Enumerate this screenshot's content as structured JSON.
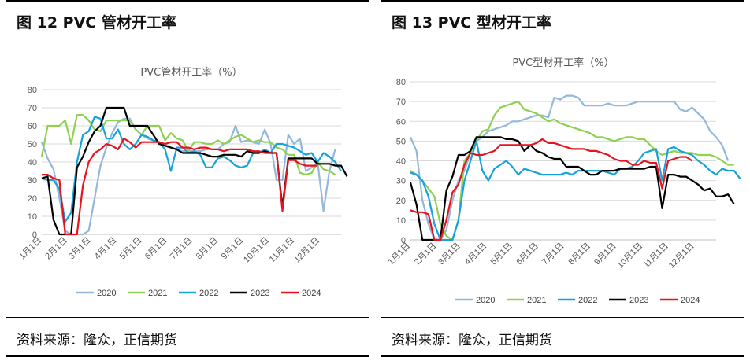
{
  "panels": [
    {
      "header": "图 12 PVC 管材开工率",
      "source": "资料来源：隆众，正信期货",
      "chart_data": {
        "type": "line",
        "title": "PVC管材开工率（%）",
        "ylim": [
          0,
          80
        ],
        "yticks": [
          0,
          10,
          20,
          30,
          40,
          50,
          60,
          70,
          80
        ],
        "xlim": [
          1,
          52
        ],
        "xticks": [
          {
            "week": 1,
            "label": "1月1日"
          },
          {
            "week": 5.4,
            "label": "2月1日"
          },
          {
            "week": 9.4,
            "label": "3月1日"
          },
          {
            "week": 13.8,
            "label": "4月1日"
          },
          {
            "week": 18.1,
            "label": "5月1日"
          },
          {
            "week": 22.4,
            "label": "6月1日"
          },
          {
            "week": 26.7,
            "label": "7月1日"
          },
          {
            "week": 31.1,
            "label": "8月1日"
          },
          {
            "week": 35.4,
            "label": "9月1日"
          },
          {
            "week": 39.8,
            "label": "10月1日"
          },
          {
            "week": 44.1,
            "label": "11月1日"
          },
          {
            "week": 48.4,
            "label": "12月1日"
          }
        ],
        "grid": "horizontal",
        "legend": "bottom",
        "series": [
          {
            "name": "2020",
            "color": "#94b8dc",
            "values": [
              51,
              42,
              36,
              20,
              2,
              0,
              0,
              0,
              2,
              20,
              38,
              48,
              56,
              62,
              64,
              64,
              58,
              55,
              53,
              52,
              51,
              50,
              48,
              47,
              46,
              46,
              46,
              46,
              47,
              47,
              47,
              50,
              51,
              60,
              51,
              52,
              51,
              50,
              58,
              50,
              30,
              30,
              55,
              50,
              53,
              35,
              37,
              40,
              13,
              35,
              47
            ]
          },
          {
            "name": "2021",
            "color": "#8fd152",
            "values": [
              43,
              60,
              60,
              60,
              63,
              50,
              66,
              66,
              63,
              58,
              57,
              63,
              63,
              63,
              63,
              63,
              58,
              55,
              60,
              60,
              60,
              52,
              56,
              53,
              52,
              46,
              51,
              51,
              50,
              50,
              52,
              50,
              52,
              54,
              55,
              53,
              51,
              52,
              51,
              51,
              48,
              47,
              44,
              44,
              34,
              33,
              34,
              40,
              36,
              35,
              33
            ]
          },
          {
            "name": "2022",
            "color": "#18a2dc",
            "values": [
              31,
              30,
              30,
              25,
              7,
              12,
              40,
              55,
              57,
              65,
              64,
              53,
              53,
              58,
              50,
              47,
              50,
              55,
              54,
              52,
              51,
              47,
              35,
              48,
              48,
              45,
              46,
              44,
              37,
              37,
              42,
              43,
              41,
              38,
              37,
              38,
              45,
              45,
              47,
              45,
              50,
              50,
              49,
              48,
              46,
              44,
              45,
              40,
              45,
              43,
              40,
              35
            ]
          },
          {
            "name": "2023",
            "color": "#000000",
            "values": [
              31,
              32,
              8,
              0,
              0,
              0,
              37,
              43,
              51,
              57,
              60,
              70,
              70,
              70,
              70,
              60,
              60,
              60,
              60,
              55,
              50,
              49,
              48,
              47,
              45,
              45,
              45,
              45,
              44,
              43,
              43,
              44,
              44,
              44,
              43,
              46,
              45,
              45,
              46,
              45,
              45,
              15,
              42,
              42,
              42,
              42,
              42,
              39,
              39,
              39,
              38,
              38,
              32
            ]
          },
          {
            "name": "2024",
            "color": "#e6141e",
            "values": [
              33,
              33,
              31,
              30,
              0,
              0,
              0,
              27,
              40,
              45,
              47,
              50,
              49,
              47,
              53,
              51,
              48,
              51,
              51,
              51,
              51,
              50,
              51,
              51,
              48,
              48,
              47,
              48,
              48,
              47,
              47,
              46,
              47,
              47,
              47,
              47,
              46,
              46,
              45,
              45,
              45,
              13,
              41,
              41,
              39,
              38,
              38,
              38
            ]
          }
        ]
      }
    },
    {
      "header": "图 13 PVC 型材开工率",
      "source": "资料来源：隆众，正信期货",
      "chart_data": {
        "type": "line",
        "title": "PVC型材开工率（%）",
        "ylim": [
          0,
          80
        ],
        "yticks": [
          0,
          10,
          20,
          30,
          40,
          50,
          60,
          70,
          80
        ],
        "xlim": [
          1,
          52
        ],
        "xticks": [
          {
            "week": 1,
            "label": "1月1日"
          },
          {
            "week": 5.4,
            "label": "2月1日"
          },
          {
            "week": 9.4,
            "label": "3月1日"
          },
          {
            "week": 13.8,
            "label": "4月1日"
          },
          {
            "week": 18.1,
            "label": "5月1日"
          },
          {
            "week": 22.4,
            "label": "6月1日"
          },
          {
            "week": 26.7,
            "label": "7月1日"
          },
          {
            "week": 31.1,
            "label": "8月1日"
          },
          {
            "week": 35.4,
            "label": "9月1日"
          },
          {
            "week": 39.8,
            "label": "10月1日"
          },
          {
            "week": 44.1,
            "label": "11月1日"
          },
          {
            "week": 48.4,
            "label": "12月1日"
          }
        ],
        "grid": "horizontal",
        "legend": "bottom",
        "series": [
          {
            "name": "2020",
            "color": "#94b8dc",
            "values": [
              52,
              45,
              20,
              8,
              0,
              0,
              5,
              20,
              30,
              35,
              44,
              50,
              52,
              55,
              56,
              57,
              58,
              60,
              60,
              61,
              62,
              63,
              63,
              62,
              72,
              71,
              73,
              73,
              72,
              68,
              68,
              68,
              68,
              69,
              68,
              68,
              68,
              69,
              70,
              70,
              70,
              70,
              70,
              70,
              70,
              66,
              65,
              67,
              64,
              61,
              55,
              52,
              48,
              40
            ]
          },
          {
            "name": "2021",
            "color": "#8fd152",
            "values": [
              35,
              33,
              30,
              26,
              22,
              8,
              2,
              0,
              10,
              40,
              44,
              50,
              55,
              56,
              63,
              67,
              68,
              69,
              70,
              66,
              65,
              64,
              62,
              60,
              61,
              59,
              58,
              57,
              56,
              55,
              54,
              52,
              52,
              51,
              50,
              51,
              52,
              52,
              51,
              51,
              48,
              45,
              43,
              44,
              45,
              44,
              44,
              44,
              43,
              43,
              43,
              42,
              40,
              38,
              38
            ]
          },
          {
            "name": "2022",
            "color": "#18a2dc",
            "values": [
              34,
              33,
              30,
              22,
              8,
              0,
              0,
              0,
              10,
              30,
              40,
              50,
              35,
              30,
              36,
              38,
              40,
              37,
              33,
              36,
              35,
              34,
              33,
              33,
              33,
              33,
              34,
              33,
              35,
              35,
              35,
              35,
              35,
              34,
              33,
              36,
              36,
              37,
              40,
              44,
              45,
              46,
              30,
              46,
              47,
              45,
              44,
              43,
              40,
              38,
              35,
              33,
              36,
              35,
              35,
              31
            ]
          },
          {
            "name": "2023",
            "color": "#000000",
            "values": [
              29,
              18,
              0,
              0,
              0,
              0,
              25,
              32,
              43,
              43,
              45,
              52,
              52,
              52,
              52,
              52,
              51,
              51,
              50,
              45,
              48,
              45,
              44,
              42,
              41,
              41,
              37,
              37,
              37,
              35,
              33,
              33,
              35,
              35,
              35,
              36,
              36,
              36,
              36,
              36,
              37,
              37,
              16,
              33,
              33,
              32,
              32,
              30,
              28,
              25,
              26,
              22,
              22,
              23,
              18
            ]
          },
          {
            "name": "2024",
            "color": "#e6141e",
            "values": [
              15,
              14,
              14,
              13,
              0,
              0,
              10,
              24,
              28,
              38,
              44,
              43,
              43,
              44,
              45,
              48,
              48,
              48,
              48,
              48,
              48,
              49,
              51,
              49,
              49,
              48,
              47,
              46,
              46,
              46,
              45,
              45,
              44,
              43,
              41,
              40,
              40,
              38,
              38,
              40,
              39,
              39,
              26,
              40,
              41,
              42,
              42,
              40
            ]
          }
        ]
      }
    }
  ]
}
